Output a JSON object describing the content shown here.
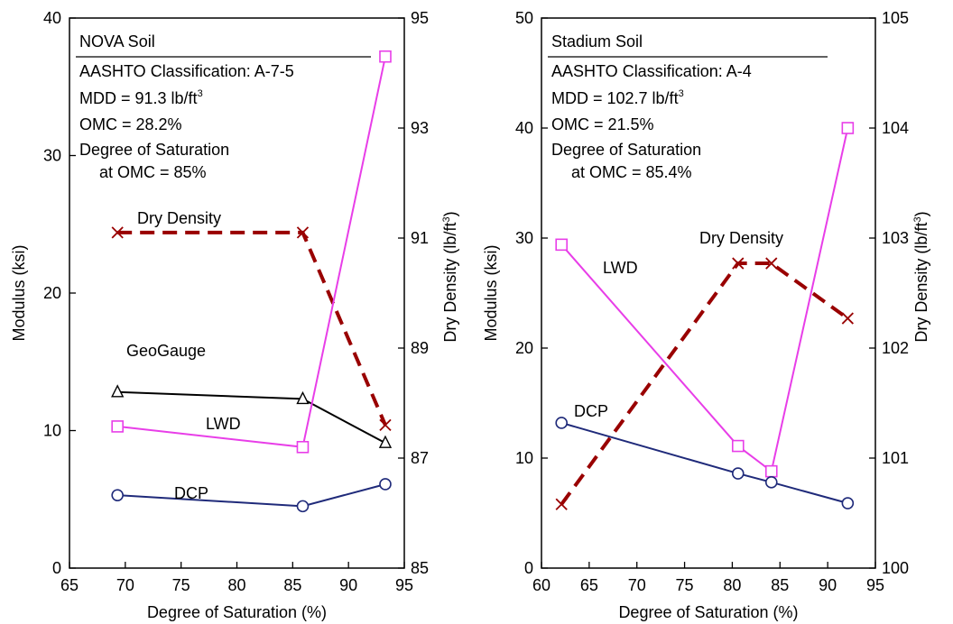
{
  "chart_data": [
    {
      "type": "line",
      "xlabel": "Degree of Saturation (%)",
      "ylabel": "Modulus (ksi)",
      "y2label_main": "Dry Density (lb/ft",
      "y2label_sup": "3",
      "y2label_end": ")",
      "xlim": [
        65,
        95
      ],
      "ylim": [
        0,
        40
      ],
      "y2lim": [
        85,
        95
      ],
      "xticks": [
        "65",
        "70",
        "75",
        "80",
        "85",
        "90",
        "95"
      ],
      "yticks": [
        "0",
        "10",
        "20",
        "30",
        "40"
      ],
      "y2ticks": [
        "85",
        "87",
        "89",
        "91",
        "93",
        "95"
      ],
      "info": {
        "title": "NOVA Soil",
        "classification": "AASHTO Classification: A-7-5",
        "mdd_main": "MDD = 91.3 lb/ft",
        "mdd_sup": "3",
        "omc": "OMC = 28.2%",
        "dos1": "Degree of Saturation",
        "dos2": "at OMC = 85%"
      },
      "series": [
        {
          "name": "Dry Density",
          "axis": "right",
          "marker": "x",
          "color": "#990000",
          "dash": true,
          "x": [
            69.3,
            85.9,
            93.3
          ],
          "y": [
            91.1,
            91.1,
            87.6
          ]
        },
        {
          "name": "GeoGauge",
          "axis": "left",
          "marker": "triangle",
          "color": "#000000",
          "dash": false,
          "x": [
            69.3,
            85.9,
            93.3
          ],
          "y": [
            12.8,
            12.3,
            9.1
          ]
        },
        {
          "name": "LWD",
          "axis": "left",
          "marker": "square",
          "color": "#e83ee8",
          "dash": false,
          "x": [
            69.3,
            85.9,
            93.3
          ],
          "y": [
            10.3,
            8.8,
            37.2
          ]
        },
        {
          "name": "DCP",
          "axis": "left",
          "marker": "circle",
          "color": "#1f2a7a",
          "dash": false,
          "x": [
            69.3,
            85.9,
            93.3
          ],
          "y": [
            5.3,
            4.5,
            6.1
          ]
        }
      ]
    },
    {
      "type": "line",
      "xlabel": "Degree of Saturation (%)",
      "ylabel": "Modulus (ksi)",
      "y2label_main": "Dry Density (lb/ft",
      "y2label_sup": "3",
      "y2label_end": ")",
      "xlim": [
        60,
        95
      ],
      "ylim": [
        0,
        50
      ],
      "y2lim": [
        100,
        105
      ],
      "xticks": [
        "60",
        "65",
        "70",
        "75",
        "80",
        "85",
        "90",
        "95"
      ],
      "yticks": [
        "0",
        "10",
        "20",
        "30",
        "40",
        "50"
      ],
      "y2ticks": [
        "100",
        "101",
        "102",
        "103",
        "104",
        "105"
      ],
      "info": {
        "title": "Stadium Soil",
        "classification": "AASHTO Classification: A-4",
        "mdd_main": "MDD = 102.7 lb/ft",
        "mdd_sup": "3",
        "omc": "OMC = 21.5%",
        "dos1": "Degree of Saturation",
        "dos2": "at OMC = 85.4%"
      },
      "series": [
        {
          "name": "Dry Density",
          "axis": "right",
          "marker": "x",
          "color": "#990000",
          "dash": true,
          "x": [
            62.1,
            80.6,
            84.1,
            92.1
          ],
          "y": [
            100.58,
            102.77,
            102.77,
            102.27
          ]
        },
        {
          "name": "LWD",
          "axis": "left",
          "marker": "square",
          "color": "#e83ee8",
          "dash": false,
          "x": [
            62.1,
            80.6,
            84.1,
            92.1
          ],
          "y": [
            29.4,
            11.1,
            8.8,
            40.0
          ]
        },
        {
          "name": "DCP",
          "axis": "left",
          "marker": "circle",
          "color": "#1f2a7a",
          "dash": false,
          "x": [
            62.1,
            80.6,
            84.1,
            92.1
          ],
          "y": [
            13.2,
            8.6,
            7.8,
            5.9
          ]
        }
      ]
    }
  ]
}
